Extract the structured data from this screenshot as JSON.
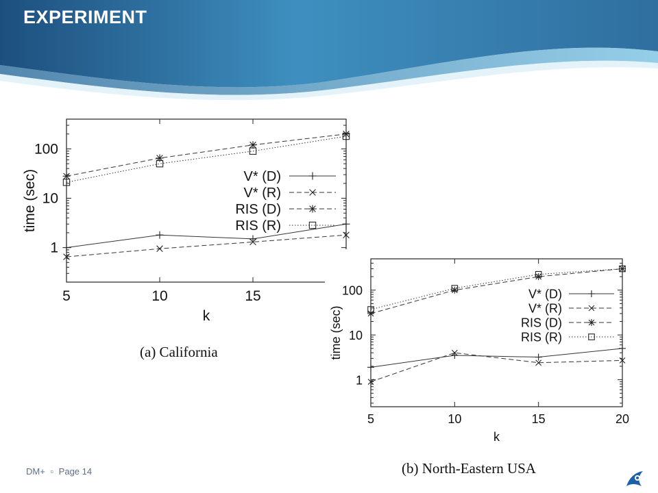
{
  "slide": {
    "title": "EXPERIMENT",
    "footer": {
      "brand": "DM+",
      "separator": "▫",
      "page": "Page 14"
    },
    "colors": {
      "header_dark": "#1d4f7e",
      "header_mid": "#3e8fbf",
      "header_light": "#7bc2e2"
    }
  },
  "chart_data": [
    {
      "type": "line",
      "caption": "(a)  California",
      "xlabel": "k",
      "ylabel": "time (sec)",
      "x_ticks": [
        5,
        10,
        15
      ],
      "y_ticks": [
        {
          "value": 1,
          "label": "1"
        },
        {
          "value": 10,
          "label": "10"
        },
        {
          "value": 100,
          "label": "100"
        }
      ],
      "xlim": [
        5,
        20
      ],
      "ylim": [
        0.2,
        400
      ],
      "y_scale": "log",
      "legend_position": "right",
      "series": [
        {
          "name": "V* (D)",
          "marker": "plus",
          "dash": "solid",
          "x": [
            5,
            10,
            15,
            20
          ],
          "y": [
            1.0,
            1.8,
            1.5,
            3.0
          ]
        },
        {
          "name": "V* (R)",
          "marker": "cross",
          "dash": "dashed",
          "x": [
            5,
            10,
            15,
            20
          ],
          "y": [
            0.65,
            0.95,
            1.3,
            1.8
          ]
        },
        {
          "name": "RIS (D)",
          "marker": "star",
          "dash": "dashed",
          "x": [
            5,
            10,
            15,
            20
          ],
          "y": [
            28,
            65,
            120,
            200
          ]
        },
        {
          "name": "RIS (R)",
          "marker": "square",
          "dash": "dotted",
          "x": [
            5,
            10,
            15,
            20
          ],
          "y": [
            21,
            50,
            90,
            180
          ]
        }
      ]
    },
    {
      "type": "line",
      "caption": "(b)  North-Eastern USA",
      "xlabel": "k",
      "ylabel": "time (sec)",
      "x_ticks": [
        5,
        10,
        15,
        20
      ],
      "y_ticks": [
        {
          "value": 1,
          "label": "1"
        },
        {
          "value": 10,
          "label": "10"
        },
        {
          "value": 100,
          "label": "100"
        }
      ],
      "xlim": [
        5,
        20
      ],
      "ylim": [
        0.25,
        500
      ],
      "y_scale": "log",
      "legend_position": "right",
      "series": [
        {
          "name": "V* (D)",
          "marker": "plus",
          "dash": "solid",
          "x": [
            5,
            10,
            15,
            20
          ],
          "y": [
            1.9,
            3.5,
            3.2,
            5.0
          ]
        },
        {
          "name": "V* (R)",
          "marker": "cross",
          "dash": "dashed",
          "x": [
            5,
            10,
            15,
            20
          ],
          "y": [
            0.9,
            4.0,
            2.4,
            2.7
          ]
        },
        {
          "name": "RIS (D)",
          "marker": "star",
          "dash": "dashed",
          "x": [
            5,
            10,
            15,
            20
          ],
          "y": [
            30,
            100,
            200,
            300
          ]
        },
        {
          "name": "RIS (R)",
          "marker": "square",
          "dash": "dotted",
          "x": [
            5,
            10,
            15,
            20
          ],
          "y": [
            37,
            110,
            225,
            300
          ]
        }
      ]
    }
  ]
}
